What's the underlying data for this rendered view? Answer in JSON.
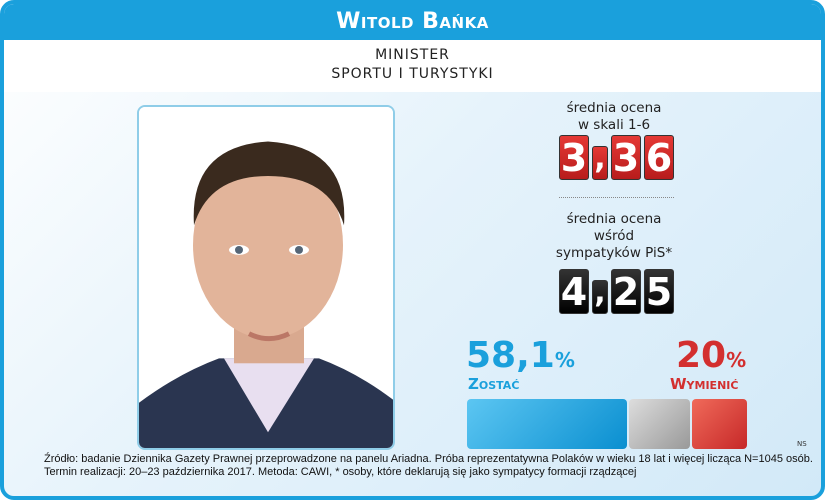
{
  "title": "Witold Bańka",
  "position": [
    "MINISTER",
    "SPORTU I TURYSTYKI"
  ],
  "rating": {
    "label": [
      "średnia ocena",
      "w skali 1-6"
    ],
    "value": "3,36",
    "digits": [
      "3",
      ",",
      "3",
      "6"
    ]
  },
  "rating_pis": {
    "label": [
      "średnia ocena",
      "wśród",
      "sympatyków PiS*"
    ],
    "value": "4,25",
    "digits": [
      "4",
      ",",
      "2",
      "5"
    ]
  },
  "stay": {
    "value": "58,1",
    "unit": "%",
    "label": "Zostać",
    "color": "#1aa0dc",
    "percent": 58.1
  },
  "replace": {
    "value": "20",
    "unit": "%",
    "label": "Wymienić",
    "color": "#d32f2f",
    "percent": 20
  },
  "ns": {
    "label": "NS",
    "color": "#b0b0b0",
    "percent": 21.9
  },
  "footer": [
    "Źródło: badanie Dziennika Gazety Prawnej przeprowadzone na panelu Ariadna. Próba reprezentatywna Polaków w wieku 18 lat i więcej licząca N=1045 osób.",
    "Termin realizacji: 20–23 października 2017. Metoda: CAWI, * osoby, które deklarują się jako sympatycy formacji rządzącej"
  ]
}
